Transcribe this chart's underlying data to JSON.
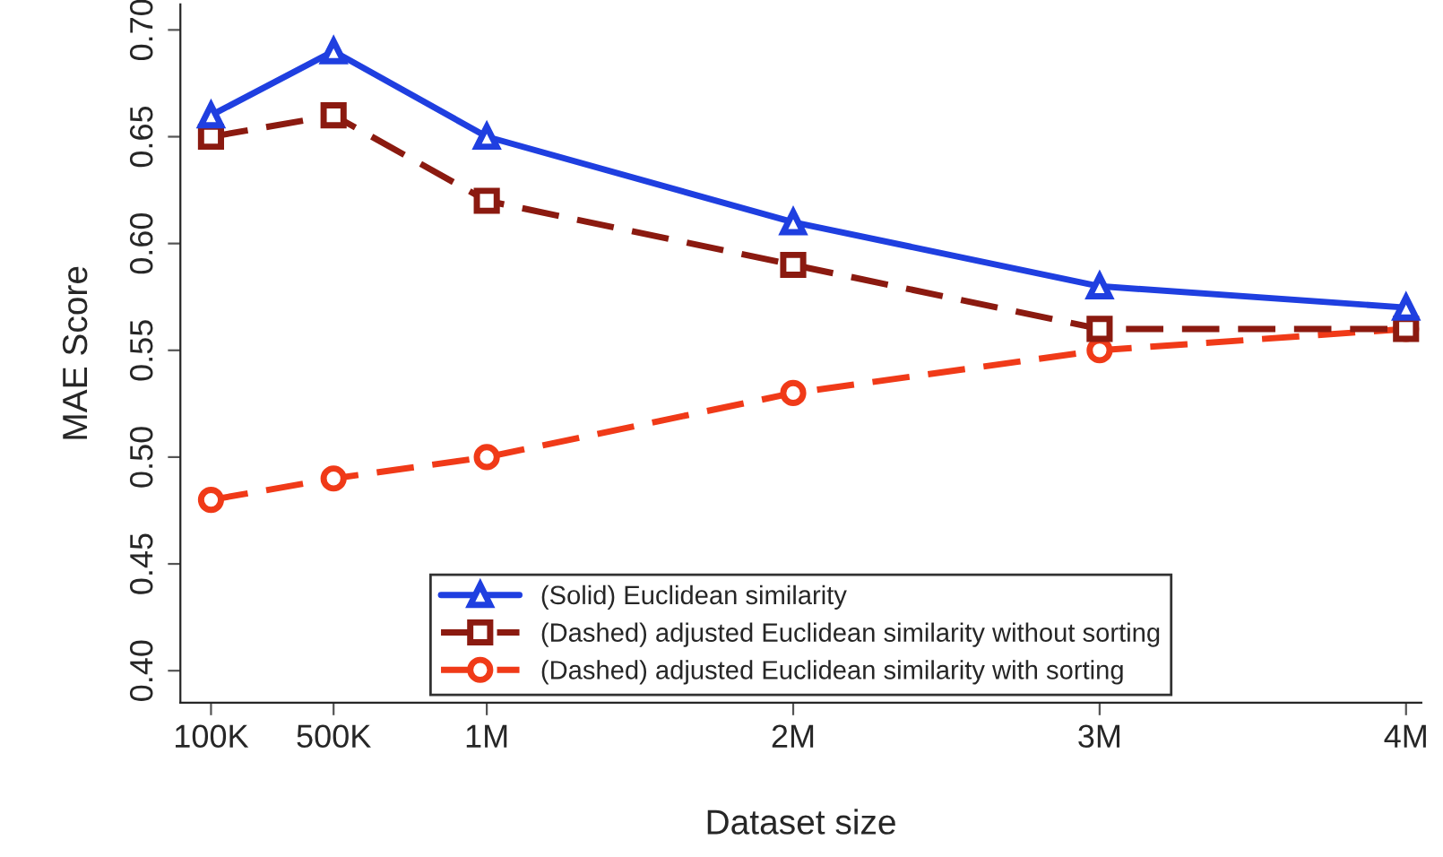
{
  "chart_data": {
    "type": "line",
    "xlabel": "Dataset size",
    "ylabel": "MAE Score",
    "x": [
      100000,
      500000,
      1000000,
      2000000,
      3000000,
      4000000
    ],
    "xlim": [
      0,
      4050000
    ],
    "xticks": [
      {
        "value": 100000,
        "label": "100K"
      },
      {
        "value": 500000,
        "label": "500K"
      },
      {
        "value": 1000000,
        "label": "1M"
      },
      {
        "value": 2000000,
        "label": "2M"
      },
      {
        "value": 3000000,
        "label": "3M"
      },
      {
        "value": 4000000,
        "label": "4M"
      }
    ],
    "ylim": [
      0.385,
      0.712
    ],
    "yticks": [
      {
        "value": 0.4,
        "label": "0.40"
      },
      0.45,
      {
        "value": 0.5,
        "label": "0.50"
      },
      0.55,
      {
        "value": 0.6,
        "label": "0.60"
      },
      0.65,
      {
        "value": 0.7,
        "label": "0.70"
      }
    ],
    "series": [
      {
        "name": "(Solid) Euclidean similarity",
        "color": "#1f3fe0",
        "marker": "triangle",
        "line_style": "solid",
        "values": [
          0.66,
          0.69,
          0.65,
          0.61,
          0.58,
          0.57
        ]
      },
      {
        "name": "(Dashed) adjusted Euclidean similarity without sorting",
        "color": "#8b1a10",
        "marker": "square",
        "line_style": "dashed",
        "values": [
          0.65,
          0.66,
          0.62,
          0.59,
          0.56,
          0.56
        ]
      },
      {
        "name": "(Dashed) adjusted Euclidean similarity with sorting",
        "color": "#f03a18",
        "marker": "circle",
        "line_style": "dashed",
        "values": [
          0.48,
          0.49,
          0.5,
          0.53,
          0.55,
          0.56
        ]
      }
    ],
    "legend": "bottom",
    "grid": false
  }
}
